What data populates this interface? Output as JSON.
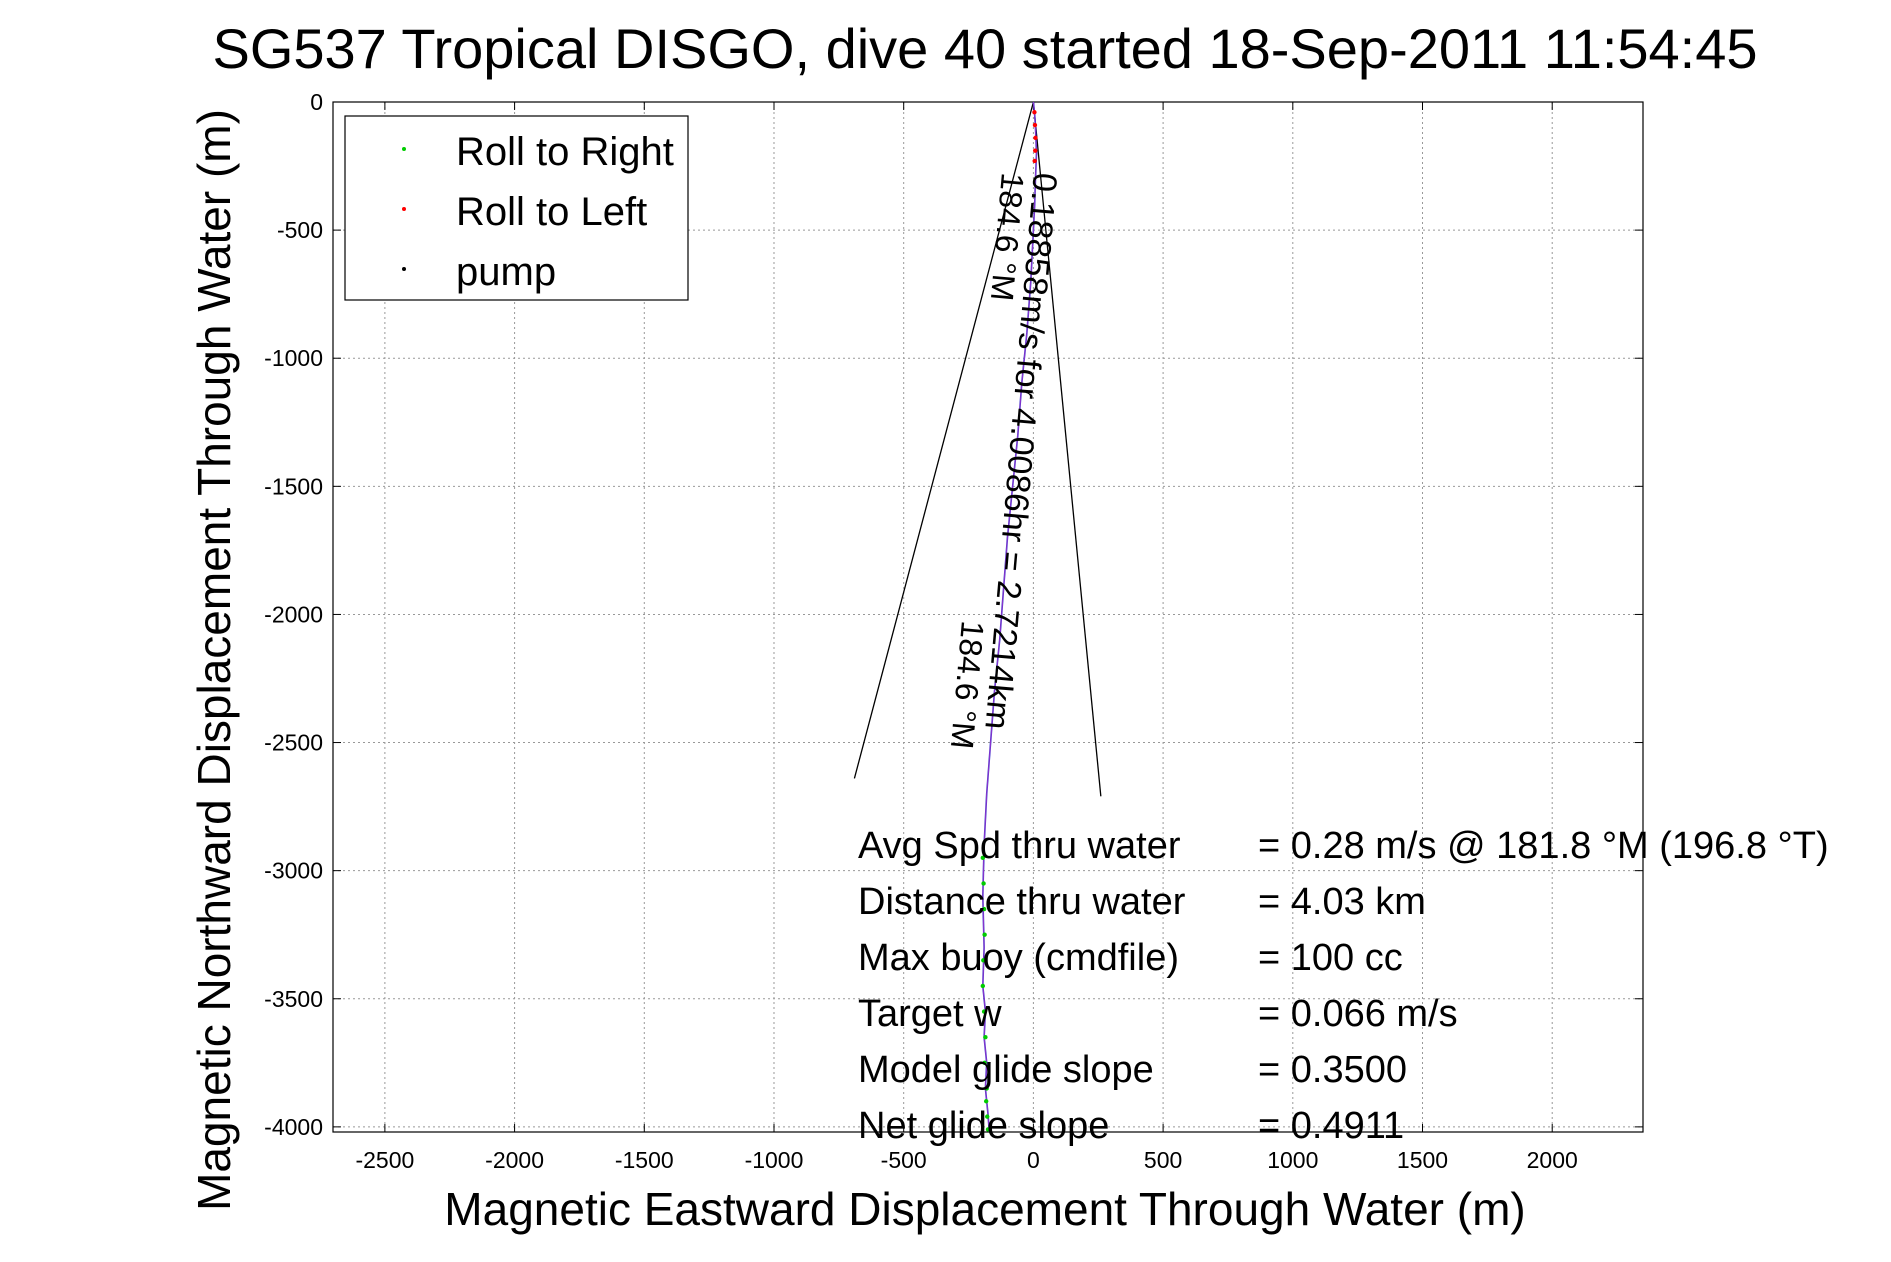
{
  "chart_data": {
    "type": "line",
    "title": "SG537 Tropical DISGO, dive 40 started 18-Sep-2011 11:54:45",
    "xlabel": "Magnetic Eastward Displacement Through Water (m)",
    "ylabel": "Magnetic Northward Displacement Through Water (m)",
    "xlim": [
      -2700,
      2350
    ],
    "ylim": [
      -4020,
      0
    ],
    "xticks": [
      -2500,
      -2000,
      -1500,
      -1000,
      -500,
      0,
      500,
      1000,
      1500,
      2000
    ],
    "yticks": [
      0,
      -500,
      -1000,
      -1500,
      -2000,
      -2500,
      -3000,
      -3500,
      -4000
    ],
    "grid": true,
    "legend_position": "top-left",
    "legend": [
      {
        "label": "Roll to Right",
        "color": "#00cc00"
      },
      {
        "label": "Roll to Left",
        "color": "#ff0000"
      },
      {
        "label": "pump",
        "color": "#000000"
      }
    ],
    "series": [
      {
        "name": "track",
        "color": "#3333cc",
        "x": [
          0,
          5,
          8,
          10,
          12,
          8,
          5,
          0,
          -10,
          -25,
          -45,
          -60,
          -80,
          -100,
          -115,
          -130,
          -150,
          -165,
          -180,
          -190,
          -195,
          -190,
          -195,
          -185,
          -190,
          -180,
          -185,
          -175,
          -170
        ],
        "y": [
          0,
          -50,
          -100,
          -150,
          -200,
          -300,
          -400,
          -500,
          -700,
          -900,
          -1100,
          -1300,
          -1500,
          -1700,
          -1900,
          -2100,
          -2300,
          -2500,
          -2700,
          -2900,
          -3100,
          -3300,
          -3450,
          -3550,
          -3650,
          -3750,
          -3850,
          -3950,
          -4020
        ]
      },
      {
        "name": "Roll to Right",
        "color": "#00cc00",
        "x": [
          -195,
          -192,
          -190,
          -188,
          -193,
          -195,
          -190,
          -185,
          -188,
          -180,
          -182,
          -178,
          -175
        ],
        "y": [
          -2950,
          -3050,
          -3150,
          -3250,
          -3350,
          -3450,
          -3550,
          -3650,
          -3750,
          -3850,
          -3900,
          -3960,
          -4010
        ]
      },
      {
        "name": "Roll to Left",
        "color": "#ff0000",
        "x": [
          4,
          6,
          8,
          7,
          5
        ],
        "y": [
          -40,
          -90,
          -140,
          -190,
          -230
        ]
      }
    ],
    "annotations": {
      "heading_label_1": "184.6 °M",
      "heading_label_2": "184.6 °M",
      "track_label": "0.18858m/s for 4.0086hr = 2.7214km",
      "stats": [
        {
          "label": "Avg Spd thru water",
          "value": "=  0.28 m/s @ 181.8 °M (196.8 °T)"
        },
        {
          "label": "Distance thru water",
          "value": "=  4.03 km"
        },
        {
          "label": "Max buoy (cmdfile)",
          "value": "= 100 cc"
        },
        {
          "label": "Target w",
          "value": "= 0.066 m/s"
        },
        {
          "label": "Model glide slope",
          "value": "= 0.3500"
        },
        {
          "label": "Net glide slope",
          "value": "= 0.4911"
        }
      ]
    }
  }
}
